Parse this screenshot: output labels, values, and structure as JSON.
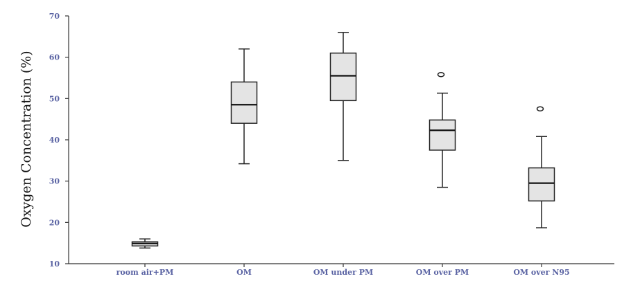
{
  "chart_data": {
    "type": "box",
    "title": "",
    "xlabel": "",
    "ylabel": "Oxygen Concentration (%)",
    "ylim": [
      10,
      70
    ],
    "yticks": [
      10,
      20,
      30,
      40,
      50,
      60,
      70
    ],
    "grid": false,
    "categories": [
      "room air+PM",
      "OM",
      "OM under PM",
      "OM over PM",
      "OM over N95"
    ],
    "boxes": [
      {
        "min": 13.8,
        "q1": 14.3,
        "median": 14.9,
        "q3": 15.3,
        "max": 16.0,
        "outliers": []
      },
      {
        "min": 34.2,
        "q1": 44.0,
        "median": 48.5,
        "q3": 54.0,
        "max": 62.0,
        "outliers": []
      },
      {
        "min": 35.0,
        "q1": 49.5,
        "median": 55.5,
        "q3": 61.0,
        "max": 66.0,
        "outliers": []
      },
      {
        "min": 28.5,
        "q1": 37.5,
        "median": 42.3,
        "q3": 44.8,
        "max": 51.3,
        "outliers": [
          55.8
        ]
      },
      {
        "min": 18.7,
        "q1": 25.2,
        "median": 29.5,
        "q3": 33.2,
        "max": 40.8,
        "outliers": [
          47.5
        ]
      }
    ],
    "colors": {
      "box_fill": "#e4e4e4",
      "stroke": "#222222",
      "tick_text": "#5a63a3"
    }
  }
}
